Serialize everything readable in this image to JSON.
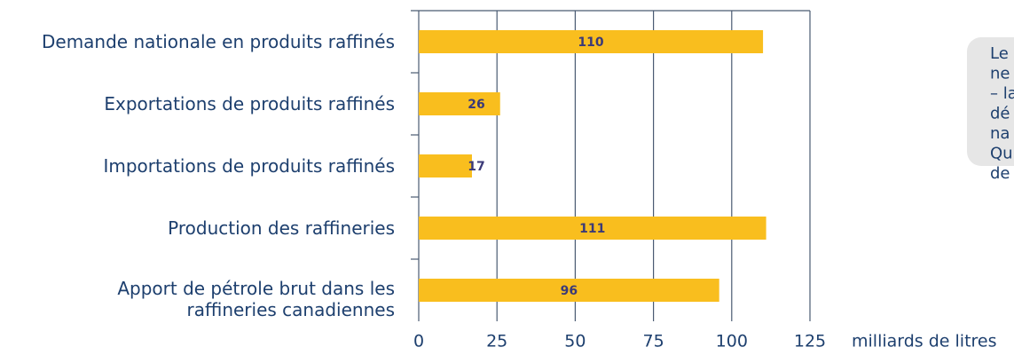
{
  "chart_data": {
    "type": "bar",
    "orientation": "horizontal",
    "categories": [
      "Demande nationale en produits raffinés",
      "Exportations de produits raffinés",
      "Importations de produits raffinés",
      "Production des raffineries",
      "Apport de pétrole brut dans les\nraffineries canadiennes"
    ],
    "values": [
      110,
      26,
      17,
      111,
      96
    ],
    "color": "#f9be1e",
    "xlim": [
      0,
      125
    ],
    "xticks": [
      0,
      25,
      50,
      75,
      100,
      125
    ],
    "grid": true,
    "xlabel": "milliards de litres"
  },
  "callout": {
    "lines": [
      "Le",
      "ne",
      "– la",
      "dé",
      "na",
      "Qu",
      "de"
    ]
  }
}
